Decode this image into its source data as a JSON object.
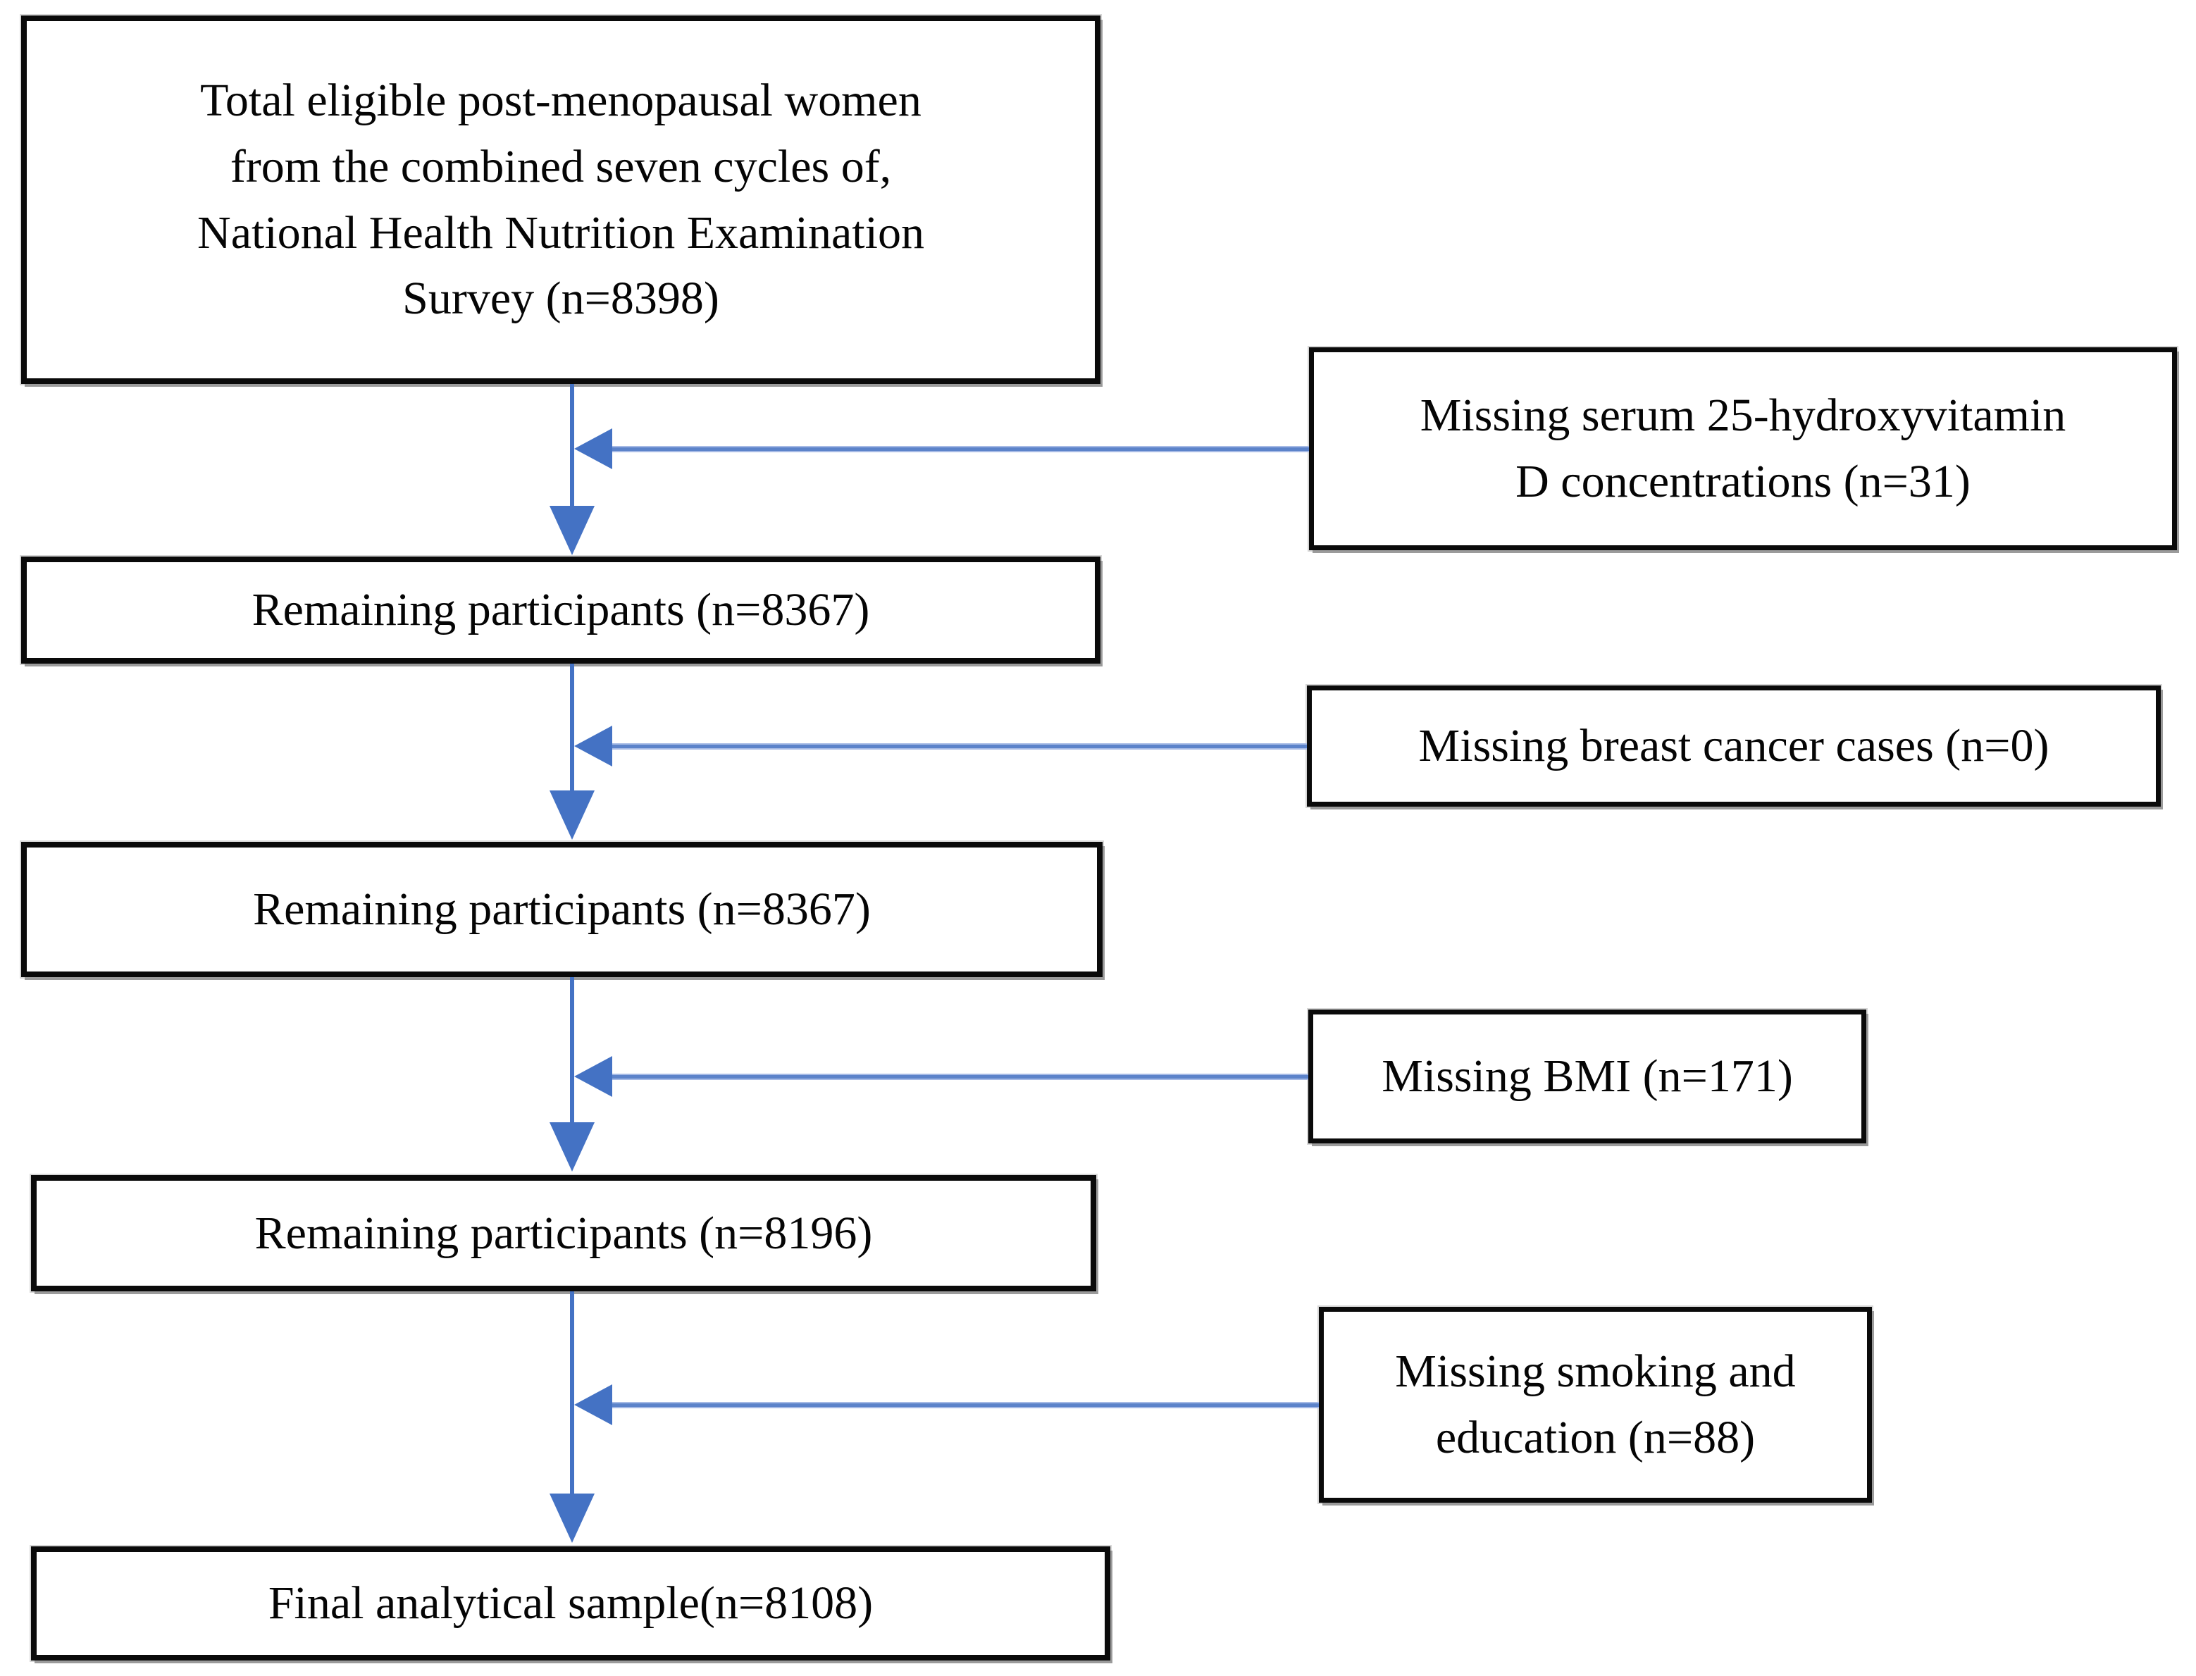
{
  "figure": {
    "type": "participant-flow-diagram",
    "background_color": "#ffffff",
    "box_border_color": "#0a0a0a",
    "arrow_color": "#4472C4",
    "arrow_line_light_color": "#8FAADC",
    "steps": [
      {
        "id": "total-eligible",
        "lines": [
          "Total eligible post-menopausal women",
          "from the combined seven cycles of,",
          "National Health Nutrition Examination",
          "Survey (n=8398)"
        ],
        "n": 8398
      },
      {
        "id": "remaining-1",
        "lines": [
          "Remaining participants (n=8367)"
        ],
        "n": 8367
      },
      {
        "id": "remaining-2",
        "lines": [
          "Remaining participants (n=8367)"
        ],
        "n": 8367
      },
      {
        "id": "remaining-3",
        "lines": [
          "Remaining participants (n=8196)"
        ],
        "n": 8196
      },
      {
        "id": "final-sample",
        "lines": [
          "Final analytical sample(n=8108)"
        ],
        "n": 8108
      }
    ],
    "exclusions": [
      {
        "id": "missing-serum-vitd",
        "lines": [
          "Missing serum 25-hydroxyvitamin",
          "D concentrations (n=31)"
        ],
        "n": 31
      },
      {
        "id": "missing-breast-cancer",
        "lines": [
          "Missing breast cancer cases (n=0)"
        ],
        "n": 0
      },
      {
        "id": "missing-bmi",
        "lines": [
          "Missing BMI (n=171)"
        ],
        "n": 171
      },
      {
        "id": "missing-smoking-education",
        "lines": [
          "Missing smoking and",
          "education (n=88)"
        ],
        "n": 88
      }
    ],
    "connectors": [
      {
        "from": "total-eligible",
        "to": "remaining-1",
        "type": "down-arrow"
      },
      {
        "from": "remaining-1",
        "to": "remaining-2",
        "type": "down-arrow"
      },
      {
        "from": "remaining-2",
        "to": "remaining-3",
        "type": "down-arrow"
      },
      {
        "from": "remaining-3",
        "to": "final-sample",
        "type": "down-arrow"
      },
      {
        "from": "missing-serum-vitd",
        "to": "spine",
        "type": "left-arrow"
      },
      {
        "from": "missing-breast-cancer",
        "to": "spine",
        "type": "left-arrow"
      },
      {
        "from": "missing-bmi",
        "to": "spine",
        "type": "left-arrow"
      },
      {
        "from": "missing-smoking-education",
        "to": "spine",
        "type": "left-arrow"
      }
    ]
  }
}
